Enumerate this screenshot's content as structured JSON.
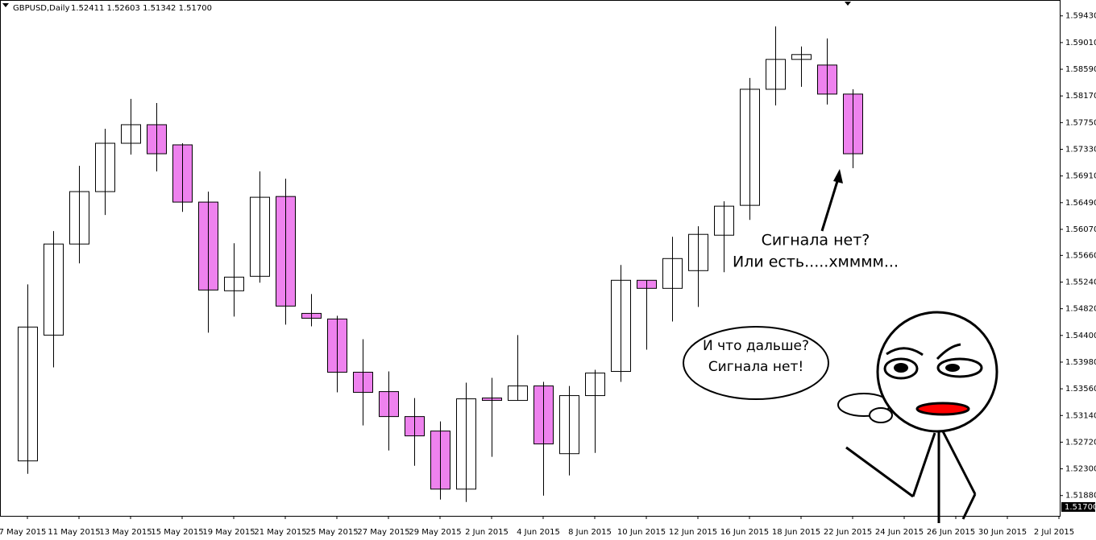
{
  "chart_data": {
    "type": "candlestick",
    "title": "GBPUSD,Daily",
    "subtitle": "1.52411 1.52603 1.51342 1.51700",
    "categories": [
      "7 May 2015",
      null,
      "11 May 2015",
      null,
      "13 May 2015",
      null,
      "15 May 2015",
      null,
      "19 May 2015",
      null,
      "21 May 2015",
      null,
      "25 May 2015",
      null,
      "27 May 2015",
      null,
      "29 May 2015",
      null,
      "2 Jun 2015",
      null,
      "4 Jun 2015",
      null,
      "8 Jun 2015",
      null,
      "10 Jun 2015",
      null,
      "12 Jun 2015",
      null,
      "16 Jun 2015",
      null,
      "18 Jun 2015",
      null,
      "22 Jun 2015",
      null,
      "24 Jun 2015",
      null,
      "26 Jun 2015",
      null,
      "30 Jun 2015",
      null,
      "2 Jul 2015"
    ],
    "open": [
      1.52425,
      1.54405,
      1.55839,
      1.56664,
      1.57425,
      1.57717,
      1.574,
      1.56499,
      1.55103,
      1.55331,
      1.56587,
      1.54747,
      1.54659,
      1.53821,
      1.53516,
      1.53123,
      1.52895,
      1.51981,
      1.53415,
      1.53377,
      1.53605,
      1.52539,
      1.53453,
      1.53834,
      1.55268,
      1.55141,
      1.5542,
      1.55978,
      1.56448,
      1.58275,
      1.58745,
      1.58656,
      1.58199,
      null,
      null,
      null,
      null,
      null,
      null,
      null,
      null
    ],
    "high": [
      1.55204,
      1.56042,
      1.5707,
      1.57653,
      1.58123,
      1.58059,
      1.57425,
      1.56664,
      1.55851,
      1.56981,
      1.56867,
      1.55052,
      1.54709,
      1.54341,
      1.53834,
      1.53415,
      1.53047,
      1.53656,
      1.53732,
      1.54405,
      1.53669,
      1.53605,
      1.53859,
      1.55509,
      1.55268,
      1.55953,
      1.56118,
      1.56511,
      1.58453,
      1.59265,
      1.58948,
      1.59075,
      1.58275,
      null,
      null,
      null,
      null,
      null,
      null,
      null,
      null
    ],
    "low": [
      1.52222,
      1.53897,
      1.55534,
      1.56296,
      1.57247,
      1.56981,
      1.56346,
      1.54443,
      1.54697,
      1.5523,
      1.5457,
      1.54544,
      1.53504,
      1.52983,
      1.5259,
      1.52349,
      1.51816,
      1.51778,
      1.52489,
      1.53377,
      1.51879,
      1.52197,
      1.52552,
      1.53669,
      1.54176,
      1.5462,
      1.54849,
      1.55395,
      1.56219,
      1.58021,
      1.58313,
      1.58034,
      1.57032,
      null,
      null,
      null,
      null,
      null,
      null,
      null,
      null
    ],
    "close": [
      1.54532,
      1.55839,
      1.56664,
      1.57425,
      1.57717,
      1.5726,
      1.56499,
      1.55115,
      1.55318,
      1.56575,
      1.54862,
      1.54671,
      1.53821,
      1.53504,
      1.53123,
      1.52819,
      1.51981,
      1.53402,
      1.53377,
      1.53605,
      1.52692,
      1.53453,
      1.53808,
      1.55268,
      1.55141,
      1.5561,
      1.55991,
      1.56435,
      1.58275,
      1.58745,
      1.58821,
      1.58199,
      1.5726,
      null,
      null,
      null,
      null,
      null,
      null,
      null,
      null
    ],
    "up_color": "#ffffff",
    "down_color": "#ee82ee",
    "ylim": [
      1.5156,
      1.5968
    ],
    "yticks": [
      {
        "value": 1.5943,
        "label": "1.59430"
      },
      {
        "value": 1.5901,
        "label": "1.59010"
      },
      {
        "value": 1.5859,
        "label": "1.58590"
      },
      {
        "value": 1.5817,
        "label": "1.58170"
      },
      {
        "value": 1.5775,
        "label": "1.57750"
      },
      {
        "value": 1.5733,
        "label": "1.57330"
      },
      {
        "value": 1.5691,
        "label": "1.56910"
      },
      {
        "value": 1.5649,
        "label": "1.56490"
      },
      {
        "value": 1.5607,
        "label": "1.56070"
      },
      {
        "value": 1.5566,
        "label": "1.55660"
      },
      {
        "value": 1.5524,
        "label": "1.55240"
      },
      {
        "value": 1.5482,
        "label": "1.54820"
      },
      {
        "value": 1.544,
        "label": "1.54400"
      },
      {
        "value": 1.5398,
        "label": "1.53980"
      },
      {
        "value": 1.5356,
        "label": "1.53560"
      },
      {
        "value": 1.5314,
        "label": "1.53140"
      },
      {
        "value": 1.5272,
        "label": "1.52720"
      },
      {
        "value": 1.523,
        "label": "1.52300"
      },
      {
        "value": 1.5188,
        "label": "1.51880"
      }
    ],
    "last_price": {
      "value": 1.517,
      "label": "1.51700"
    },
    "annotations": [
      "Сигнала нет?",
      "Или есть.....хмммм...",
      "И что дальше?",
      "Сигнала нет!"
    ]
  }
}
